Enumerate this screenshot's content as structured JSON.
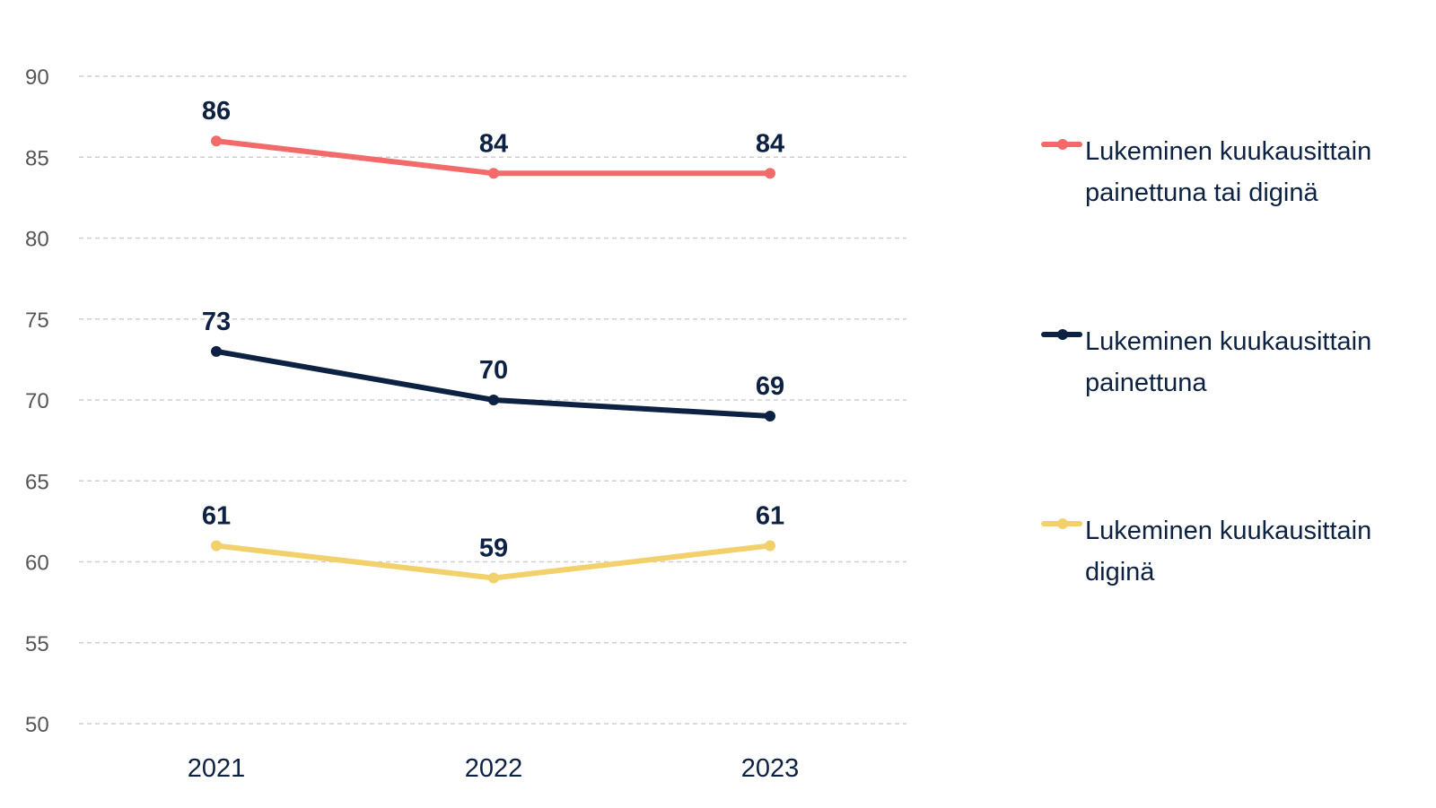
{
  "chart_data": {
    "type": "line",
    "categories": [
      "2021",
      "2022",
      "2023"
    ],
    "ylim": [
      50,
      90
    ],
    "yticks": [
      50,
      55,
      60,
      65,
      70,
      75,
      80,
      85,
      90
    ],
    "grid": true,
    "legend_position": "right",
    "series": [
      {
        "name": "Lukeminen kuukausittain painettuna tai diginä",
        "values": [
          86,
          84,
          84
        ],
        "color": "#f26a6a"
      },
      {
        "name": "Lukeminen kuukausittain painettuna",
        "values": [
          73,
          70,
          69
        ],
        "color": "#0d2142"
      },
      {
        "name": "Lukeminen kuukausittain diginä",
        "values": [
          61,
          59,
          61
        ],
        "color": "#f2d06b"
      }
    ],
    "tick_color": "#555555",
    "label_color": "#0d2142"
  }
}
